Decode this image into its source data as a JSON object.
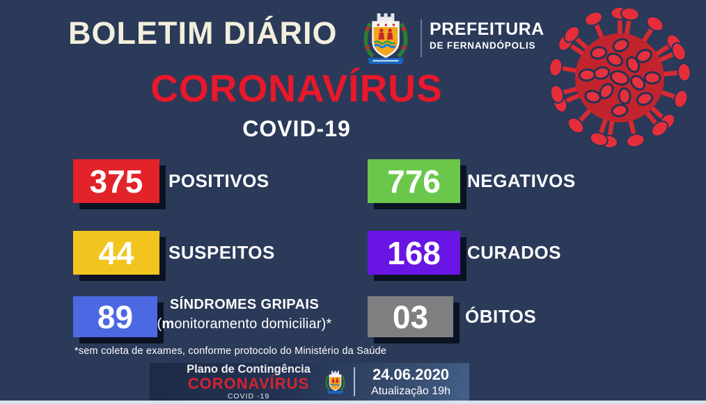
{
  "header": {
    "bulletin_title": "BOLETIM DIÁRIO",
    "org_name": "PREFEITURA",
    "org_subtitle": "DE FERNANDÓPOLIS"
  },
  "main": {
    "title": "CORONAVÍRUS",
    "subtitle": "COVID-19"
  },
  "stats": [
    {
      "value": "375",
      "label": "POSITIVOS",
      "color": "#E2232A"
    },
    {
      "value": "776",
      "label": "NEGATIVOS",
      "color": "#6BC74A"
    },
    {
      "value": "44",
      "label": "SUSPEITOS",
      "color": "#F1C51E"
    },
    {
      "value": "168",
      "label": "CURADOS",
      "color": "#6916E4"
    },
    {
      "value": "89",
      "label": "SÍNDROMES GRIPAIS",
      "label2_open": "(",
      "label2_bold": "m",
      "label2_rest": "onitoramento domiciliar)*",
      "color": "#4C68E2"
    },
    {
      "value": "03",
      "label": "ÓBITOS",
      "color": "#7F7F81"
    }
  ],
  "footnote": "*sem coleta de exames, conforme protocolo do Ministério da Saúde",
  "footer": {
    "plan_title": "Plano de Contingência",
    "plan_name": "CORONAVÍRUS",
    "plan_subtitle": "COVID -19",
    "date": "24.06.2020",
    "update_time": "Atualização 19h"
  },
  "colors": {
    "background": "#2B3A59",
    "title_cream": "#F2EFDC",
    "accent_red": "#E9182B",
    "box_shadow": "#0B1322",
    "bottom_strip": "#D5E3EB"
  }
}
